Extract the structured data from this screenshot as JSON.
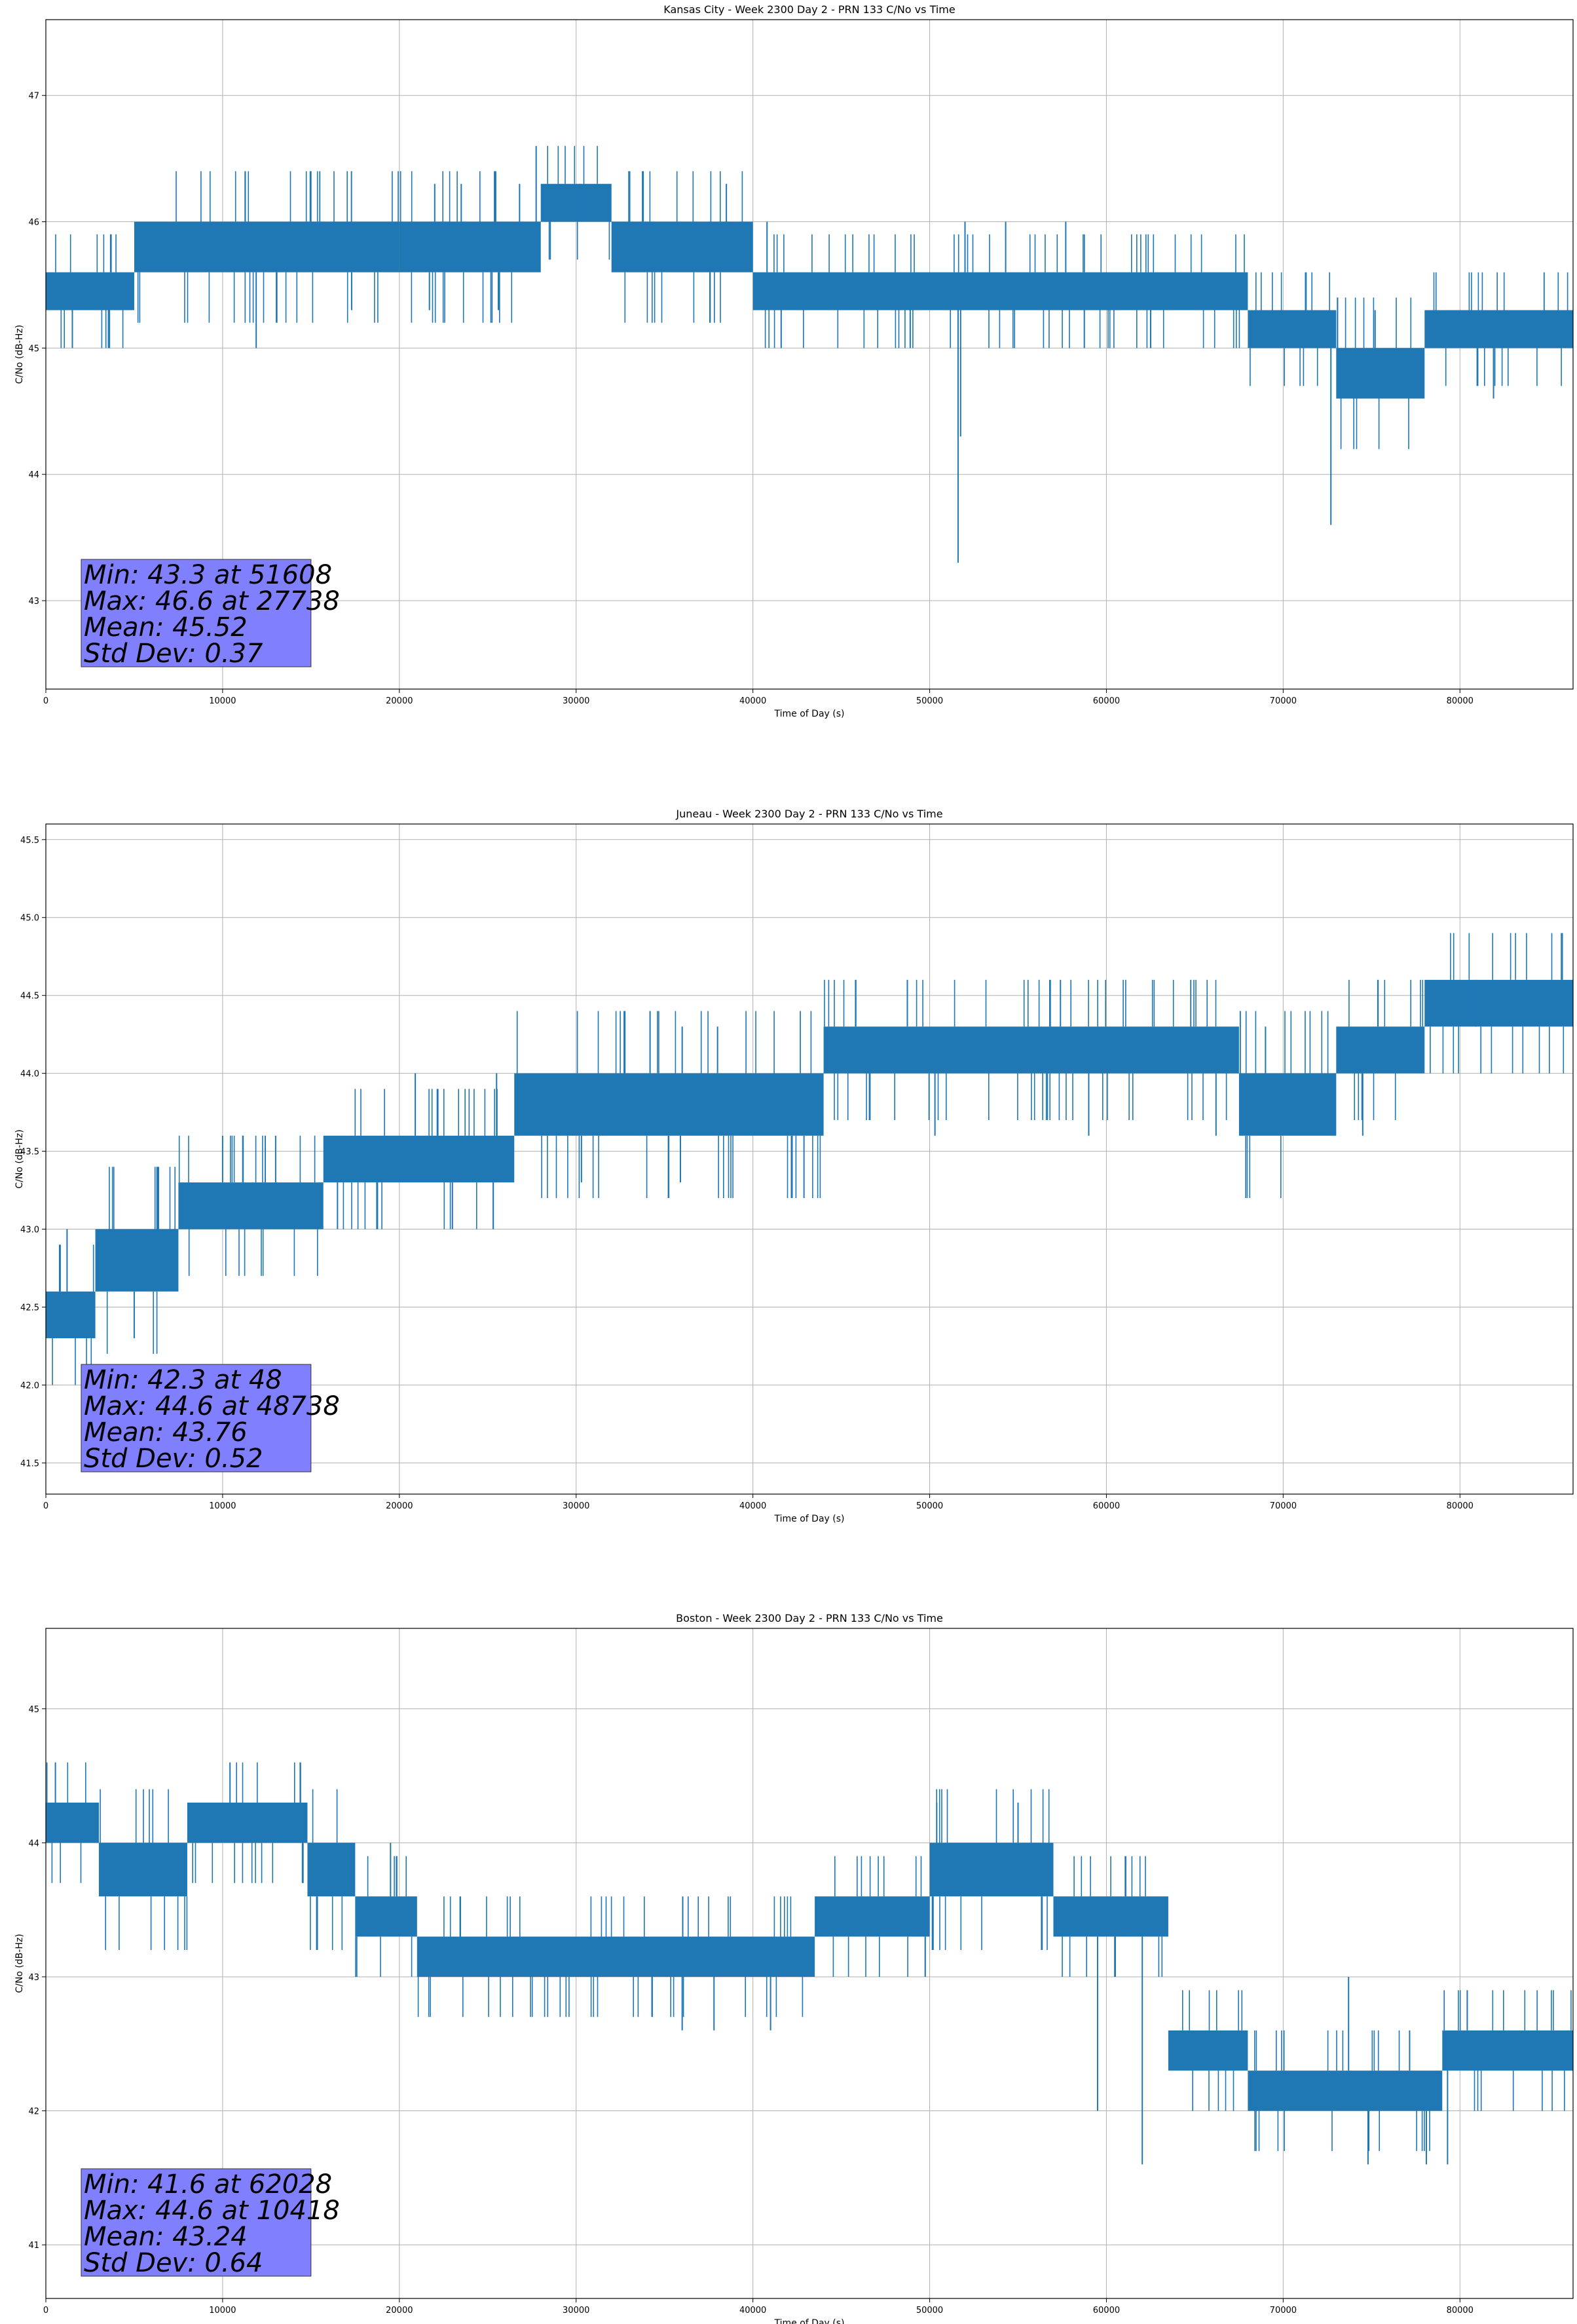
{
  "figure": {
    "background": "#ffffff",
    "line_color": "#1f77b4",
    "stats_box_color": "#8080ff"
  },
  "chart_data": [
    {
      "type": "line",
      "title": "Kansas City - Week 2300 Day 2 - PRN 133 C/No vs Time",
      "xlabel": "Time of Day (s)",
      "ylabel": "C/No (dB-Hz)",
      "xlim": [
        0,
        86400
      ],
      "ylim": [
        42.3,
        47.6
      ],
      "xticks": [
        0,
        10000,
        20000,
        30000,
        40000,
        50000,
        60000,
        70000,
        80000
      ],
      "yticks": [
        43,
        44,
        45,
        46,
        47
      ],
      "ytick_labels": [
        "43",
        "44",
        "45",
        "46",
        "47"
      ],
      "grid": true,
      "segments": [
        {
          "x0": 0,
          "x1": 5000,
          "lo": 45.3,
          "hi": 45.6
        },
        {
          "x0": 5000,
          "x1": 20000,
          "lo": 45.6,
          "hi": 46.0
        },
        {
          "x0": 20000,
          "x1": 28000,
          "lo": 45.6,
          "hi": 46.0
        },
        {
          "x0": 28000,
          "x1": 32000,
          "lo": 46.0,
          "hi": 46.3
        },
        {
          "x0": 32000,
          "x1": 40000,
          "lo": 45.6,
          "hi": 46.0
        },
        {
          "x0": 40000,
          "x1": 68000,
          "lo": 45.3,
          "hi": 45.6
        },
        {
          "x0": 68000,
          "x1": 73000,
          "lo": 45.0,
          "hi": 45.3
        },
        {
          "x0": 73000,
          "x1": 78000,
          "lo": 44.6,
          "hi": 45.0
        },
        {
          "x0": 78000,
          "x1": 86400,
          "lo": 45.0,
          "hi": 45.3
        }
      ],
      "spikes": [
        {
          "x": 1500,
          "y": 45.0
        },
        {
          "x": 3600,
          "y": 45.0
        },
        {
          "x": 11900,
          "y": 45.0
        },
        {
          "x": 17300,
          "y": 45.3
        },
        {
          "x": 21700,
          "y": 45.3
        },
        {
          "x": 22000,
          "y": 46.3
        },
        {
          "x": 23500,
          "y": 46.3
        },
        {
          "x": 25600,
          "y": 45.3
        },
        {
          "x": 26800,
          "y": 46.3
        },
        {
          "x": 27738,
          "y": 46.6
        },
        {
          "x": 30200,
          "y": 46.3
        },
        {
          "x": 38500,
          "y": 46.3
        },
        {
          "x": 40800,
          "y": 46.0
        },
        {
          "x": 41600,
          "y": 45.0
        },
        {
          "x": 48900,
          "y": 45.0
        },
        {
          "x": 51608,
          "y": 43.3
        },
        {
          "x": 51750,
          "y": 44.3
        },
        {
          "x": 52000,
          "y": 46.0
        },
        {
          "x": 54300,
          "y": 46.0
        },
        {
          "x": 57700,
          "y": 46.0
        },
        {
          "x": 62500,
          "y": 45.0
        },
        {
          "x": 72700,
          "y": 43.6
        },
        {
          "x": 75200,
          "y": 45.3
        },
        {
          "x": 81900,
          "y": 44.6
        }
      ],
      "stats": [
        "Min: 43.3 at 51608",
        "Max: 46.6 at 27738",
        "Mean: 45.52",
        "Std Dev: 0.37"
      ]
    },
    {
      "type": "line",
      "title": "Juneau - Week 2300 Day 2 - PRN 133 C/No vs Time",
      "xlabel": "Time of Day (s)",
      "ylabel": "C/No (dB-Hz)",
      "xlim": [
        0,
        86400
      ],
      "ylim": [
        41.3,
        45.6
      ],
      "xticks": [
        0,
        10000,
        20000,
        30000,
        40000,
        50000,
        60000,
        70000,
        80000
      ],
      "yticks": [
        41.5,
        42.0,
        42.5,
        43.0,
        43.5,
        44.0,
        44.5,
        45.0,
        45.5
      ],
      "ytick_labels": [
        "41.5",
        "42.0",
        "42.5",
        "43.0",
        "43.5",
        "44.0",
        "44.5",
        "45.0",
        "45.5"
      ],
      "grid": true,
      "segments": [
        {
          "x0": 0,
          "x1": 2800,
          "lo": 42.3,
          "hi": 42.6
        },
        {
          "x0": 2800,
          "x1": 7500,
          "lo": 42.6,
          "hi": 43.0
        },
        {
          "x0": 7500,
          "x1": 15700,
          "lo": 43.0,
          "hi": 43.3
        },
        {
          "x0": 15700,
          "x1": 26500,
          "lo": 43.3,
          "hi": 43.6
        },
        {
          "x0": 26500,
          "x1": 44000,
          "lo": 43.6,
          "hi": 44.0
        },
        {
          "x0": 44000,
          "x1": 67500,
          "lo": 44.0,
          "hi": 44.3
        },
        {
          "x0": 67500,
          "x1": 73000,
          "lo": 43.6,
          "hi": 44.0
        },
        {
          "x0": 73000,
          "x1": 78000,
          "lo": 44.0,
          "hi": 44.3
        },
        {
          "x0": 78000,
          "x1": 86400,
          "lo": 44.3,
          "hi": 44.6
        }
      ],
      "spikes": [
        {
          "x": 48,
          "y": 42.3
        },
        {
          "x": 1200,
          "y": 43.0
        },
        {
          "x": 5000,
          "y": 42.3
        },
        {
          "x": 10000,
          "y": 43.6
        },
        {
          "x": 13000,
          "y": 43.6
        },
        {
          "x": 16500,
          "y": 43.0
        },
        {
          "x": 20900,
          "y": 44.0
        },
        {
          "x": 23000,
          "y": 43.0
        },
        {
          "x": 25500,
          "y": 44.0
        },
        {
          "x": 30300,
          "y": 43.3
        },
        {
          "x": 35900,
          "y": 43.3
        },
        {
          "x": 36000,
          "y": 44.3
        },
        {
          "x": 38000,
          "y": 44.3
        },
        {
          "x": 48738,
          "y": 44.6
        },
        {
          "x": 50300,
          "y": 43.6
        },
        {
          "x": 57400,
          "y": 44.6
        },
        {
          "x": 59000,
          "y": 43.6
        },
        {
          "x": 66200,
          "y": 43.6
        },
        {
          "x": 69000,
          "y": 44.3
        },
        {
          "x": 74500,
          "y": 43.6
        },
        {
          "x": 80900,
          "y": 44.6
        }
      ],
      "stats": [
        "Min: 42.3 at 48",
        "Max: 44.6 at 48738",
        "Mean: 43.76",
        "Std Dev: 0.52"
      ]
    },
    {
      "type": "line",
      "title": "Boston - Week 2300 Day 2 - PRN 133 C/No vs Time",
      "xlabel": "Time of Day (s)",
      "ylabel": "C/No (dB-Hz)",
      "xlim": [
        0,
        86400
      ],
      "ylim": [
        40.6,
        45.6
      ],
      "xticks": [
        0,
        10000,
        20000,
        30000,
        40000,
        50000,
        60000,
        70000,
        80000
      ],
      "yticks": [
        41,
        42,
        43,
        44,
        45
      ],
      "ytick_labels": [
        "41",
        "42",
        "43",
        "44",
        "45"
      ],
      "grid": true,
      "segments": [
        {
          "x0": 0,
          "x1": 3000,
          "lo": 44.0,
          "hi": 44.3
        },
        {
          "x0": 3000,
          "x1": 8000,
          "lo": 43.6,
          "hi": 44.0
        },
        {
          "x0": 8000,
          "x1": 14800,
          "lo": 44.0,
          "hi": 44.3
        },
        {
          "x0": 14800,
          "x1": 17500,
          "lo": 43.6,
          "hi": 44.0
        },
        {
          "x0": 17500,
          "x1": 21000,
          "lo": 43.3,
          "hi": 43.6
        },
        {
          "x0": 21000,
          "x1": 43500,
          "lo": 43.0,
          "hi": 43.3
        },
        {
          "x0": 43500,
          "x1": 50000,
          "lo": 43.3,
          "hi": 43.6
        },
        {
          "x0": 50000,
          "x1": 57000,
          "lo": 43.6,
          "hi": 44.0
        },
        {
          "x0": 57000,
          "x1": 63500,
          "lo": 43.3,
          "hi": 43.6
        },
        {
          "x0": 63500,
          "x1": 68000,
          "lo": 42.3,
          "hi": 42.6
        },
        {
          "x0": 68000,
          "x1": 79000,
          "lo": 42.0,
          "hi": 42.3
        },
        {
          "x0": 79000,
          "x1": 86400,
          "lo": 42.3,
          "hi": 42.6
        }
      ],
      "spikes": [
        {
          "x": 10418,
          "y": 44.6
        },
        {
          "x": 19500,
          "y": 44.0
        },
        {
          "x": 36000,
          "y": 42.6
        },
        {
          "x": 37800,
          "y": 42.6
        },
        {
          "x": 41000,
          "y": 42.6
        },
        {
          "x": 50400,
          "y": 44.3
        },
        {
          "x": 55000,
          "y": 44.3
        },
        {
          "x": 59500,
          "y": 42.0
        },
        {
          "x": 62028,
          "y": 41.6
        },
        {
          "x": 73700,
          "y": 43.0
        },
        {
          "x": 74800,
          "y": 41.6
        },
        {
          "x": 78100,
          "y": 41.6
        },
        {
          "x": 79300,
          "y": 41.6
        }
      ],
      "stats": [
        "Min: 41.6 at 62028",
        "Max: 44.6 at 10418",
        "Mean: 43.24",
        "Std Dev: 0.64"
      ]
    }
  ]
}
